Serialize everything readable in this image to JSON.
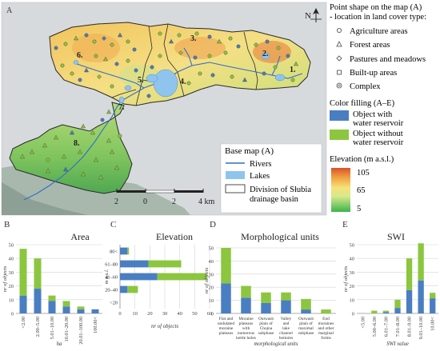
{
  "map": {
    "panel_letter": "A",
    "north_label": "N",
    "region_labels": [
      "1.",
      "2.",
      "3.",
      "4.",
      "5.",
      "6.",
      "7.",
      "8."
    ],
    "scale": {
      "ticks": [
        "2",
        "0",
        "2",
        "4 km"
      ]
    }
  },
  "legend": {
    "point_title_1": "Point shape on the map (A)",
    "point_title_2": "- location in land cover type:",
    "point_items": [
      {
        "label": "Agriculture areas",
        "shape": "circle"
      },
      {
        "label": "Forest areas",
        "shape": "triangle"
      },
      {
        "label": "Pastures and meadows",
        "shape": "diamond"
      },
      {
        "label": "Built-up areas",
        "shape": "square"
      },
      {
        "label": "Complex",
        "shape": "ring"
      }
    ],
    "fill_title": "Color filling (A–E)",
    "fill_items": [
      {
        "label_1": "Object with",
        "label_2": "water reservoir",
        "color": "#4a7ec2"
      },
      {
        "label_1": "Object without",
        "label_2": "water reservoir",
        "color": "#8cc63f"
      }
    ],
    "base_title": "Base map (A)",
    "base_items": [
      {
        "label_1": "Rivers",
        "label_2": "",
        "kind": "line"
      },
      {
        "label_1": "Lakes",
        "label_2": "",
        "kind": "lake"
      },
      {
        "label_1": "Division of Słubia",
        "label_2": "drainage basin",
        "kind": "boundary"
      }
    ],
    "elevation_title": "Elevation (m a.s.l.)",
    "elevation_ticks": [
      "105",
      "65",
      "5"
    ]
  },
  "colors": {
    "with_reservoir": "#4a7ec2",
    "without_reservoir": "#8cc63f"
  },
  "chart_data": [
    {
      "panel": "B",
      "type": "bar",
      "stacked": true,
      "title": "Area",
      "xlabel": "ha",
      "ylabel": "nr of objects",
      "categories": [
        "<2.00",
        "2.00–5.00",
        "5.01–10.00",
        "10.01–20.00",
        "20.01–100.00",
        "100.00<"
      ],
      "yticks": [
        "0",
        "10",
        "20",
        "30",
        "40",
        "50"
      ],
      "ylim": [
        0,
        50
      ],
      "series": [
        {
          "values": [
            13,
            18,
            9,
            5,
            3,
            3
          ]
        },
        {
          "values": [
            34,
            22,
            4,
            4,
            2,
            0
          ]
        }
      ]
    },
    {
      "panel": "C",
      "type": "bar",
      "orientation": "horizontal",
      "stacked": true,
      "title": "Elevation",
      "xlabel": "nr of objects",
      "ylabel": "m a.s.l.",
      "categories": [
        "80<",
        "61–80",
        "41–60",
        "20–40",
        "<20"
      ],
      "xticks": [
        "0",
        "10",
        "20",
        "30",
        "40",
        "50",
        "60"
      ],
      "xlim": [
        0,
        60
      ],
      "series": [
        {
          "values": [
            5,
            19,
            25,
            5,
            0
          ]
        },
        {
          "values": [
            1,
            22,
            33,
            7,
            0
          ]
        }
      ]
    },
    {
      "panel": "D",
      "type": "bar",
      "stacked": true,
      "title": "Morphological units",
      "xlabel": "morphological units",
      "ylabel": "nr of objects",
      "categories": [
        [
          "Flat and",
          "undulated",
          "moraine",
          "plateaus"
        ],
        [
          "Moraine",
          "plateaus",
          "with",
          "numerous",
          "kettle holes"
        ],
        [
          "Outwash",
          "plain of",
          "Chojna",
          "subphase"
        ],
        [
          "Valley",
          "and",
          "lake",
          "channel",
          "bottoms"
        ],
        [
          "Outwash",
          "plain of",
          "maximal",
          "subphase"
        ],
        [
          "End",
          "moraines",
          "and other",
          "marginal",
          "forms"
        ]
      ],
      "yticks": [
        "0",
        "10",
        "20",
        "30",
        "40",
        "50"
      ],
      "ylim": [
        0,
        50
      ],
      "series": [
        {
          "values": [
            23,
            12,
            8,
            10,
            3,
            0
          ]
        },
        {
          "values": [
            27,
            9,
            8,
            6,
            8,
            3
          ]
        }
      ]
    },
    {
      "panel": "E",
      "type": "bar",
      "stacked": true,
      "title": "SWI",
      "xlabel": "SWI value",
      "ylabel": "nr of objects",
      "categories": [
        "<5.00",
        "5.00–6.00",
        "6.01–7.00",
        "7.01–8.00",
        "8.01–9.00",
        "9.01–10.00",
        "10.00<"
      ],
      "yticks": [
        "0",
        "10",
        "20",
        "30",
        "40",
        "50"
      ],
      "ylim": [
        0,
        50
      ],
      "series": [
        {
          "values": [
            0,
            0,
            1,
            4,
            17,
            24,
            11
          ]
        },
        {
          "values": [
            0,
            2,
            1,
            6,
            23,
            27,
            4
          ]
        }
      ]
    }
  ]
}
